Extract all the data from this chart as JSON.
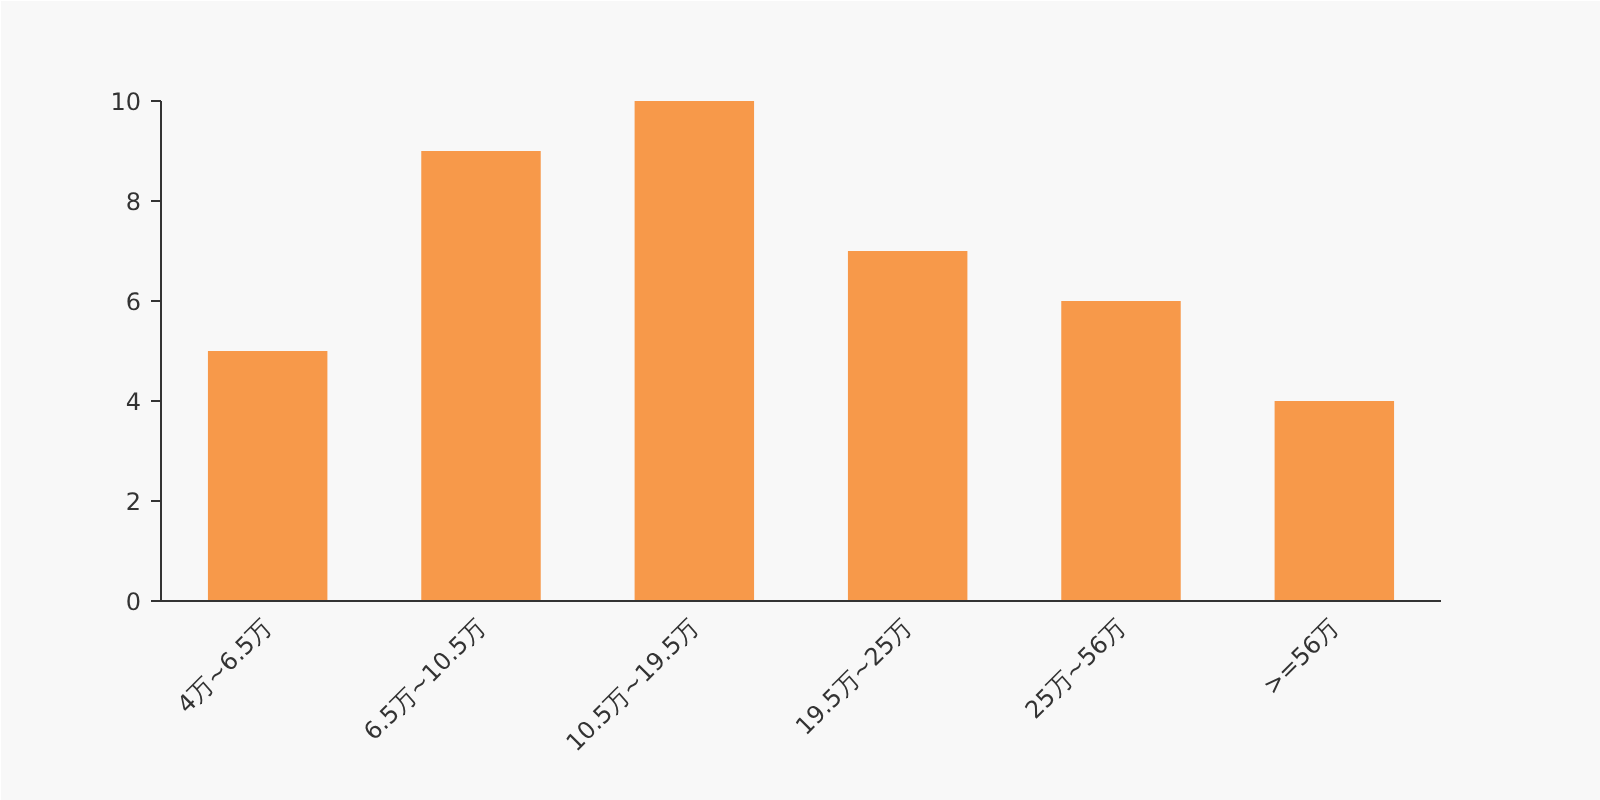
{
  "chart_data": {
    "type": "bar",
    "categories": [
      "4万~6.5万",
      "6.5万~10.5万",
      "10.5万~19.5万",
      "19.5万~25万",
      "25万~56万",
      ">=56万"
    ],
    "values": [
      5,
      9,
      10,
      7,
      6,
      4
    ],
    "color": "#f7994a",
    "ylim": [
      0,
      10
    ],
    "yticks": [
      0,
      2,
      4,
      6,
      8,
      10
    ],
    "grid": false,
    "legend": false
  }
}
